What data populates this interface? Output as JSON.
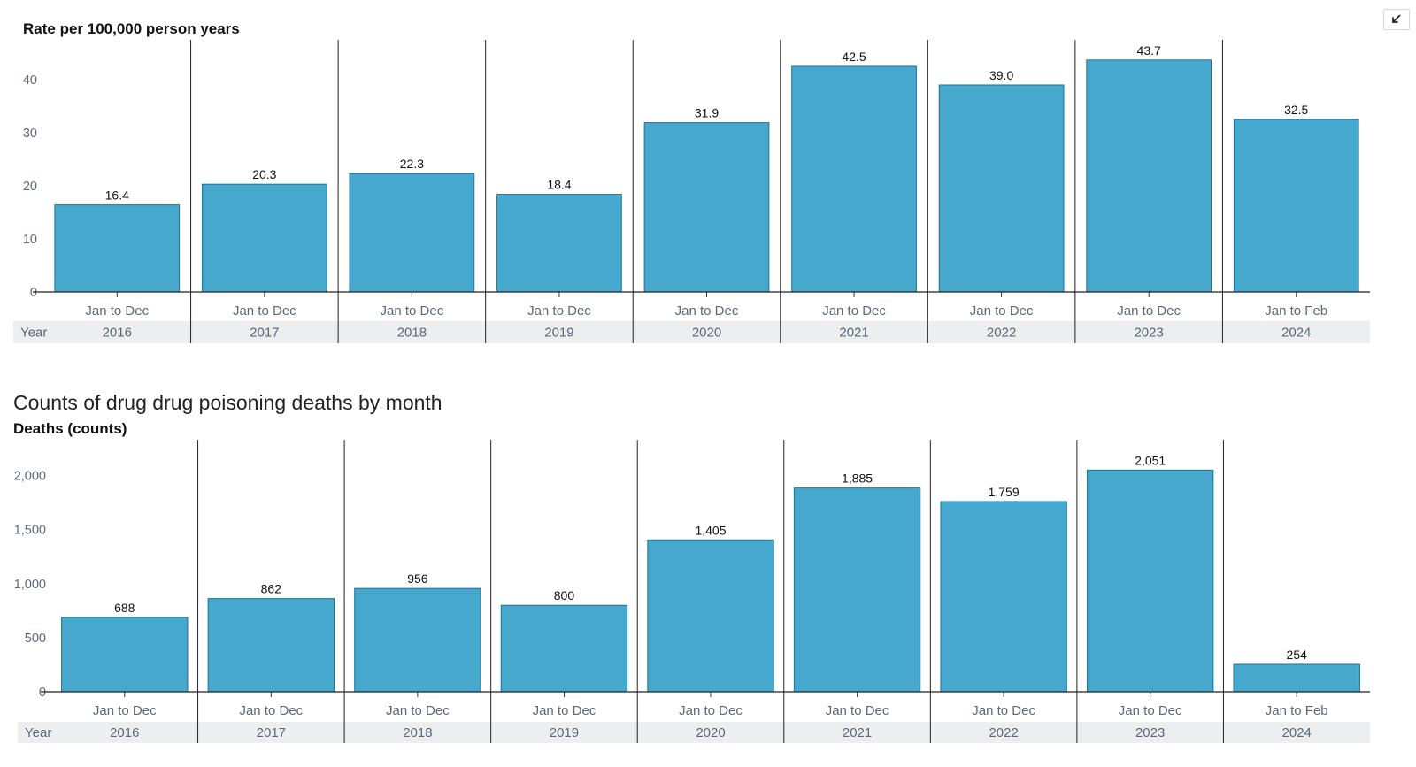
{
  "controls": {
    "collapse_icon": "collapse-arrow-icon"
  },
  "section_title": "Counts of drug drug poisoning deaths by month",
  "colors": {
    "bar": "#47a8ce",
    "bar_stroke": "#1d7296",
    "year_band": "#eceef0"
  },
  "chart_data": [
    {
      "type": "bar",
      "title": "",
      "ylabel": "Rate per 100,000 person years",
      "x_group_label": "Year",
      "categories": [
        "Jan to Dec",
        "Jan to Dec",
        "Jan to Dec",
        "Jan to Dec",
        "Jan to Dec",
        "Jan to Dec",
        "Jan to Dec",
        "Jan to Dec",
        "Jan to Feb"
      ],
      "years": [
        "2016",
        "2017",
        "2018",
        "2019",
        "2020",
        "2021",
        "2022",
        "2023",
        "2024"
      ],
      "values": [
        16.4,
        20.3,
        22.3,
        18.4,
        31.9,
        42.5,
        39.0,
        43.7,
        32.5
      ],
      "value_labels": [
        "16.4",
        "20.3",
        "22.3",
        "18.4",
        "31.9",
        "42.5",
        "39.0",
        "43.7",
        "32.5"
      ],
      "yticks": [
        0,
        10,
        20,
        30,
        40
      ],
      "ytick_labels": [
        "0",
        "10",
        "20",
        "30",
        "40"
      ],
      "ylim": [
        0,
        47.5
      ],
      "grid": false,
      "legend": "none"
    },
    {
      "type": "bar",
      "title": "Counts of drug drug poisoning deaths by month",
      "ylabel": "Deaths (counts)",
      "x_group_label": "Year",
      "categories": [
        "Jan to Dec",
        "Jan to Dec",
        "Jan to Dec",
        "Jan to Dec",
        "Jan to Dec",
        "Jan to Dec",
        "Jan to Dec",
        "Jan to Dec",
        "Jan to Feb"
      ],
      "years": [
        "2016",
        "2017",
        "2018",
        "2019",
        "2020",
        "2021",
        "2022",
        "2023",
        "2024"
      ],
      "values": [
        688,
        862,
        956,
        800,
        1405,
        1885,
        1759,
        2051,
        254
      ],
      "value_labels": [
        "688",
        "862",
        "956",
        "800",
        "1,405",
        "1,885",
        "1,759",
        "2,051",
        "254"
      ],
      "yticks": [
        0,
        500,
        1000,
        1500,
        2000
      ],
      "ytick_labels": [
        "0",
        "500",
        "1,000",
        "1,500",
        "2,000"
      ],
      "ylim": [
        0,
        2250
      ],
      "grid": false,
      "legend": "none"
    }
  ]
}
